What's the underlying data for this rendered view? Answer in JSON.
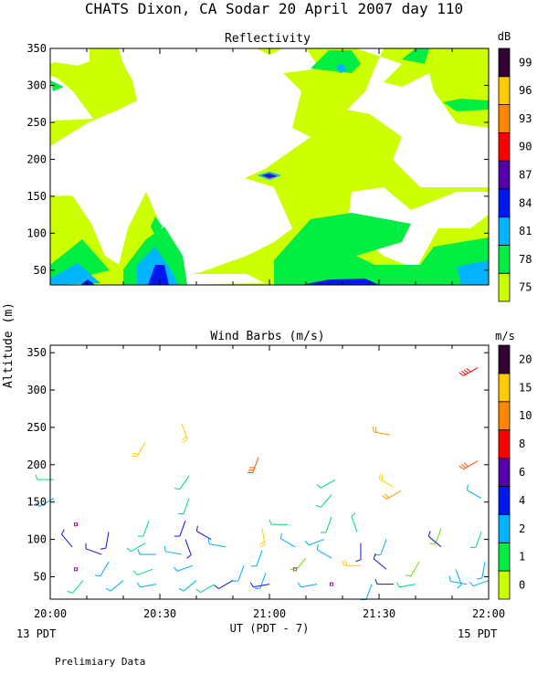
{
  "title": "CHATS Dixon, CA  Sodar  20 April 2007  day 110",
  "ylabel": "Altitude (m)",
  "xlabel": "UT  (PDT - 7)",
  "x_left_note": "13 PDT",
  "x_right_note": "15 PDT",
  "footer": "Prelimiary Data",
  "colors": {
    "c75": "#ccff00",
    "c78": "#00ee44",
    "c81": "#00b4ff",
    "c84": "#0018f0",
    "c87": "#5500aa",
    "c90": "#ff0000",
    "c93": "#ff8800",
    "c96": "#ffcc00",
    "c99": "#330033"
  },
  "chart_data": [
    {
      "type": "heatmap",
      "title": "Reflectivity",
      "xlim": [
        "20:00",
        "22:00"
      ],
      "ylim": [
        30,
        350
      ],
      "xticks": [
        "20:00",
        "20:30",
        "21:00",
        "21:30",
        "22:00"
      ],
      "yticks": [
        "50",
        "100",
        "150",
        "200",
        "250",
        "300",
        "350"
      ],
      "colorbar": {
        "label": "dB",
        "ticks": [
          "75",
          "78",
          "81",
          "84",
          "87",
          "90",
          "93",
          "96",
          "99"
        ]
      },
      "regions": [
        {
          "level": "75",
          "points": [
            [
              0,
              40
            ],
            [
              30,
              40
            ],
            [
              30,
              40
            ],
            [
              0,
              40
            ]
          ]
        }
      ]
    },
    {
      "type": "scatter",
      "title": "Wind Barbs (m/s)",
      "xlim": [
        "20:00",
        "22:00"
      ],
      "ylim": [
        20,
        360
      ],
      "xticks": [
        "20:00",
        "20:30",
        "21:00",
        "21:30",
        "22:00"
      ],
      "yticks": [
        "50",
        "100",
        "150",
        "200",
        "250",
        "300",
        "350"
      ],
      "colorbar": {
        "label": "m/s",
        "ticks": [
          "0",
          "1",
          "2",
          "4",
          "6",
          "8",
          "10",
          "15",
          "20"
        ]
      },
      "barbs": [
        {
          "t": 1,
          "z": 180,
          "spd": 4,
          "dir": 270
        },
        {
          "t": 1,
          "z": 155,
          "spd": 3,
          "dir": 240
        },
        {
          "t": 7,
          "z": 120,
          "spd": 1,
          "dir": 0
        },
        {
          "t": 6,
          "z": 90,
          "spd": 1,
          "dir": 320
        },
        {
          "t": 7,
          "z": 60,
          "spd": 1,
          "dir": 0
        },
        {
          "t": 9,
          "z": 45,
          "spd": 4,
          "dir": 220
        },
        {
          "t": 16,
          "z": 110,
          "spd": 1,
          "dir": 190
        },
        {
          "t": 14,
          "z": 80,
          "spd": 1,
          "dir": 290
        },
        {
          "t": 16,
          "z": 70,
          "spd": 2,
          "dir": 210
        },
        {
          "t": 20,
          "z": 45,
          "spd": 2,
          "dir": 230
        },
        {
          "t": 26,
          "z": 230,
          "spd": 8,
          "dir": 210
        },
        {
          "t": 27,
          "z": 125,
          "spd": 5,
          "dir": 200
        },
        {
          "t": 26,
          "z": 95,
          "spd": 5,
          "dir": 240
        },
        {
          "t": 29,
          "z": 80,
          "spd": 3,
          "dir": 270
        },
        {
          "t": 28,
          "z": 60,
          "spd": 4,
          "dir": 250
        },
        {
          "t": 29,
          "z": 40,
          "spd": 3,
          "dir": 260
        },
        {
          "t": 36,
          "z": 255,
          "spd": 8,
          "dir": 160
        },
        {
          "t": 38,
          "z": 185,
          "spd": 4,
          "dir": 215
        },
        {
          "t": 38,
          "z": 155,
          "spd": 4,
          "dir": 200
        },
        {
          "t": 37,
          "z": 125,
          "spd": 1,
          "dir": 200
        },
        {
          "t": 37,
          "z": 100,
          "spd": 1,
          "dir": 160
        },
        {
          "t": 36,
          "z": 80,
          "spd": 2,
          "dir": 280
        },
        {
          "t": 39,
          "z": 65,
          "spd": 3,
          "dir": 250
        },
        {
          "t": 40,
          "z": 45,
          "spd": 3,
          "dir": 230
        },
        {
          "t": 45,
          "z": 40,
          "spd": 4,
          "dir": 240
        },
        {
          "t": 44,
          "z": 100,
          "spd": 1,
          "dir": 300
        },
        {
          "t": 48,
          "z": 90,
          "spd": 2,
          "dir": 280
        },
        {
          "t": 50,
          "z": 45,
          "spd": 1,
          "dir": 240
        },
        {
          "t": 53,
          "z": 65,
          "spd": 2,
          "dir": 200
        },
        {
          "t": 57,
          "z": 210,
          "spd": 15,
          "dir": 200
        },
        {
          "t": 58,
          "z": 115,
          "spd": 9,
          "dir": 170
        },
        {
          "t": 58,
          "z": 85,
          "spd": 3,
          "dir": 200
        },
        {
          "t": 59,
          "z": 55,
          "spd": 2,
          "dir": 200
        },
        {
          "t": 60,
          "z": 40,
          "spd": 1,
          "dir": 260
        },
        {
          "t": 65,
          "z": 120,
          "spd": 5,
          "dir": 270
        },
        {
          "t": 67,
          "z": 90,
          "spd": 2,
          "dir": 300
        },
        {
          "t": 67,
          "z": 60,
          "spd": 1,
          "dir": 0
        },
        {
          "t": 70,
          "z": 75,
          "spd": 6,
          "dir": 220
        },
        {
          "t": 73,
          "z": 40,
          "spd": 2,
          "dir": 260
        },
        {
          "t": 78,
          "z": 180,
          "spd": 5,
          "dir": 240
        },
        {
          "t": 77,
          "z": 160,
          "spd": 5,
          "dir": 220
        },
        {
          "t": 77,
          "z": 130,
          "spd": 4,
          "dir": 200
        },
        {
          "t": 75,
          "z": 100,
          "spd": 2,
          "dir": 250
        },
        {
          "t": 77,
          "z": 75,
          "spd": 2,
          "dir": 300
        },
        {
          "t": 77,
          "z": 40,
          "spd": 1,
          "dir": 0
        },
        {
          "t": 84,
          "z": 110,
          "spd": 4,
          "dir": 340
        },
        {
          "t": 85,
          "z": 95,
          "spd": 1,
          "dir": 180
        },
        {
          "t": 85,
          "z": 65,
          "spd": 8,
          "dir": 270
        },
        {
          "t": 88,
          "z": 40,
          "spd": 3,
          "dir": 200
        },
        {
          "t": 93,
          "z": 240,
          "spd": 10,
          "dir": 280
        },
        {
          "t": 96,
          "z": 165,
          "spd": 10,
          "dir": 240
        },
        {
          "t": 94,
          "z": 170,
          "spd": 8,
          "dir": 300
        },
        {
          "t": 92,
          "z": 100,
          "spd": 2,
          "dir": 200
        },
        {
          "t": 92,
          "z": 60,
          "spd": 1,
          "dir": 310
        },
        {
          "t": 94,
          "z": 40,
          "spd": 1,
          "dir": 270
        },
        {
          "t": 100,
          "z": 40,
          "spd": 4,
          "dir": 260
        },
        {
          "t": 101,
          "z": 70,
          "spd": 6,
          "dir": 210
        },
        {
          "t": 107,
          "z": 115,
          "spd": 6,
          "dir": 200
        },
        {
          "t": 107,
          "z": 90,
          "spd": 1,
          "dir": 310
        },
        {
          "t": 111,
          "z": 60,
          "spd": 2,
          "dir": 160
        },
        {
          "t": 114,
          "z": 40,
          "spd": 2,
          "dir": 280
        },
        {
          "t": 117,
          "z": 330,
          "spd": 20,
          "dir": 240
        },
        {
          "t": 117,
          "z": 205,
          "spd": 15,
          "dir": 240
        },
        {
          "t": 118,
          "z": 155,
          "spd": 3,
          "dir": 300
        },
        {
          "t": 118,
          "z": 110,
          "spd": 5,
          "dir": 200
        },
        {
          "t": 119,
          "z": 70,
          "spd": 2,
          "dir": 190
        },
        {
          "t": 120,
          "z": 45,
          "spd": 2,
          "dir": 250
        }
      ]
    }
  ]
}
